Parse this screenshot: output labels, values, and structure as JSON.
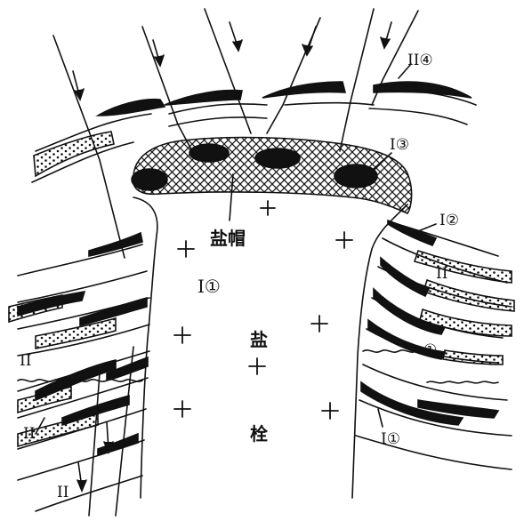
{
  "diagram": {
    "labels": {
      "cap_rock": "盐帽",
      "salt": "盐",
      "plug": "栓",
      "zone_I1_center": "I①",
      "zone_I1_lower_right": "I①",
      "zone_I2": "I②",
      "zone_I3": "I③",
      "zone_II4": "II④",
      "zone_II_right": "II",
      "zone_II_left_mid": "II",
      "zone_II_left_low": "II",
      "zone_II_left_bottom": "II",
      "circle_1": "①"
    },
    "colors": {
      "ink": "#111111",
      "paper": "#ffffff"
    },
    "symbols": {
      "salt_marker": "+",
      "cap_pattern": "crosshatch",
      "sand_pattern": "dots"
    }
  }
}
